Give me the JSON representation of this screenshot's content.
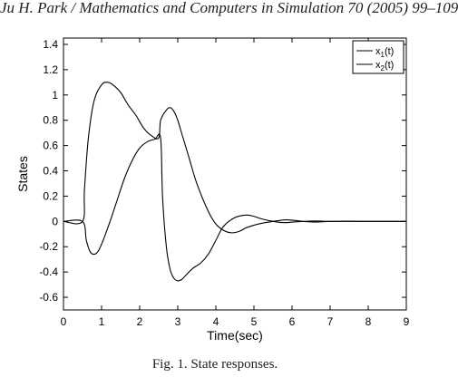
{
  "header": {
    "running_title": "Ju H. Park / Mathematics and Computers in Simulation 70 (2005) 99–109"
  },
  "caption": "Fig. 1. State responses.",
  "colors": {
    "line": "#000000",
    "axes": "#000000",
    "background": "#ffffff"
  },
  "chart_data": {
    "type": "line",
    "title": "",
    "xlabel": "Time(sec)",
    "ylabel": "States",
    "xlim": [
      0,
      9
    ],
    "ylim": [
      -0.7,
      1.45
    ],
    "xticks": [
      0,
      1,
      2,
      3,
      4,
      5,
      6,
      7,
      8,
      9
    ],
    "xtick_labels": [
      "0",
      "1",
      "2",
      "3",
      "4",
      "5",
      "6",
      "7",
      "8",
      "9"
    ],
    "yticks": [
      -0.6,
      -0.4,
      -0.2,
      0,
      0.2,
      0.4,
      0.6,
      0.8,
      1,
      1.2,
      1.4
    ],
    "ytick_labels": [
      "-0.6",
      "-0.4",
      "-0.2",
      "0",
      "0.2",
      "0.4",
      "0.6",
      "0.8",
      "1",
      "1.2",
      "1.4"
    ],
    "grid": false,
    "legend_position": "top-right",
    "series": [
      {
        "name": "x1(t)",
        "name_base": "x",
        "name_sub": "1",
        "name_tail": "(t)",
        "x": [
          0,
          0.5,
          0.55,
          0.65,
          0.8,
          1.0,
          1.15,
          1.3,
          1.5,
          1.7,
          1.9,
          2.1,
          2.3,
          2.5,
          2.55,
          2.7,
          2.8,
          2.9,
          3.0,
          3.1,
          3.3,
          3.5,
          3.8,
          4.0,
          4.2,
          4.4,
          4.6,
          4.8,
          5.0,
          5.2,
          5.5,
          5.8,
          6.0,
          6.3,
          6.6,
          7.0,
          7.5,
          8.0,
          9.0
        ],
        "y": [
          0,
          0,
          0.25,
          0.65,
          0.95,
          1.08,
          1.1,
          1.08,
          1.02,
          0.92,
          0.84,
          0.74,
          0.68,
          0.66,
          0.8,
          0.88,
          0.9,
          0.87,
          0.8,
          0.7,
          0.5,
          0.3,
          0.08,
          -0.02,
          -0.07,
          -0.09,
          -0.08,
          -0.05,
          -0.03,
          -0.015,
          0.0,
          0.012,
          0.01,
          0.0,
          -0.005,
          0.0,
          0.002,
          0.0,
          0.0
        ]
      },
      {
        "name": "x2(t)",
        "name_base": "x",
        "name_sub": "2",
        "name_tail": "(t)",
        "x": [
          0,
          0.5,
          0.6,
          0.7,
          0.8,
          0.9,
          1.0,
          1.2,
          1.4,
          1.6,
          1.8,
          2.0,
          2.2,
          2.4,
          2.55,
          2.6,
          2.7,
          2.8,
          2.9,
          3.0,
          3.1,
          3.2,
          3.4,
          3.6,
          3.8,
          4.0,
          4.2,
          4.5,
          4.8,
          5.0,
          5.2,
          5.5,
          5.8,
          6.0,
          6.3,
          6.6,
          7.0,
          7.5,
          8.0,
          9.0
        ],
        "y": [
          0,
          0,
          -0.15,
          -0.24,
          -0.26,
          -0.24,
          -0.18,
          -0.02,
          0.16,
          0.34,
          0.48,
          0.58,
          0.63,
          0.65,
          0.66,
          0.2,
          -0.2,
          -0.38,
          -0.45,
          -0.47,
          -0.46,
          -0.43,
          -0.37,
          -0.33,
          -0.26,
          -0.15,
          -0.04,
          0.03,
          0.05,
          0.04,
          0.02,
          0.0,
          -0.01,
          -0.005,
          0.0,
          0.004,
          0.0,
          0.0,
          0.0,
          0.0
        ]
      }
    ]
  }
}
